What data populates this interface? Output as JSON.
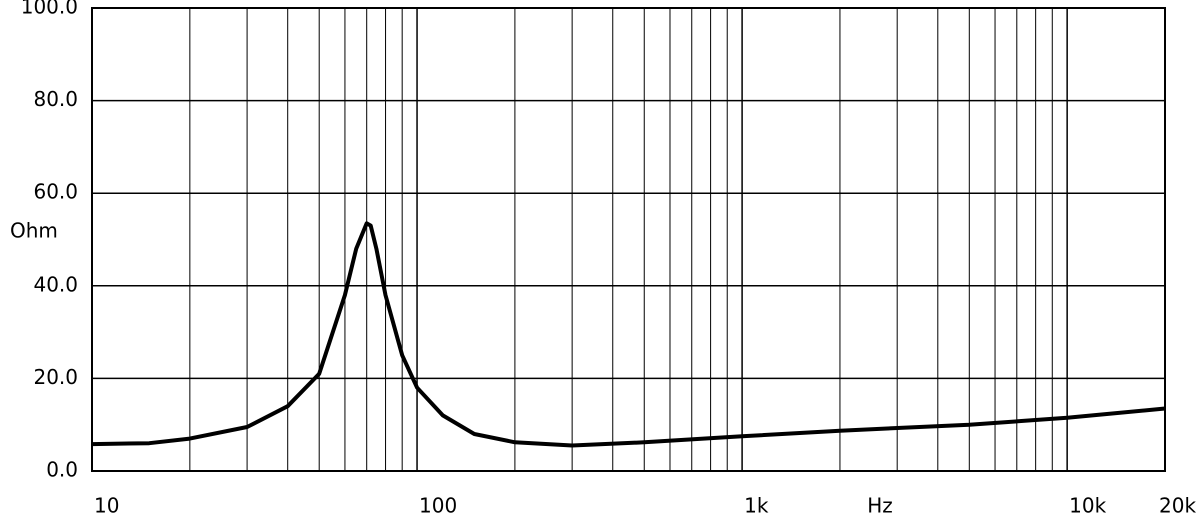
{
  "chart_data": {
    "type": "line",
    "xscale": "log",
    "x_label": "Hz",
    "y_label": "Ohm",
    "x": [
      10,
      15,
      20,
      30,
      40,
      50,
      60,
      65,
      70,
      72,
      75,
      80,
      90,
      100,
      120,
      150,
      200,
      300,
      500,
      1000,
      2000,
      5000,
      10000,
      20000
    ],
    "values": [
      5.8,
      6,
      7,
      9.5,
      14,
      21,
      38,
      48,
      53.5,
      53,
      48,
      38,
      25,
      18,
      12,
      8,
      6.2,
      5.5,
      6.2,
      7.5,
      8.7,
      10,
      11.5,
      13.5
    ],
    "color": "#000000",
    "xlim": [
      10,
      20000
    ],
    "ylim": [
      0,
      100
    ],
    "xticks": [
      {
        "value": 10,
        "label": "10"
      },
      {
        "value": 100,
        "label": "100"
      },
      {
        "value": 1000,
        "label": "1k"
      },
      {
        "value": 10000,
        "label": "10k"
      },
      {
        "value": 20000,
        "label": "20k"
      }
    ],
    "yticks": [
      {
        "value": 0,
        "label": "0.0"
      },
      {
        "value": 20,
        "label": "20.0"
      },
      {
        "value": 40,
        "label": "40.0"
      },
      {
        "value": 60,
        "label": "60.0"
      },
      {
        "value": 80,
        "label": "80.0"
      },
      {
        "value": 100,
        "label": "100.0"
      }
    ],
    "xgrid": [
      20,
      30,
      40,
      50,
      60,
      70,
      80,
      90,
      200,
      300,
      400,
      500,
      600,
      700,
      800,
      900,
      2000,
      3000,
      4000,
      5000,
      6000,
      7000,
      8000,
      9000
    ],
    "grid": true
  }
}
